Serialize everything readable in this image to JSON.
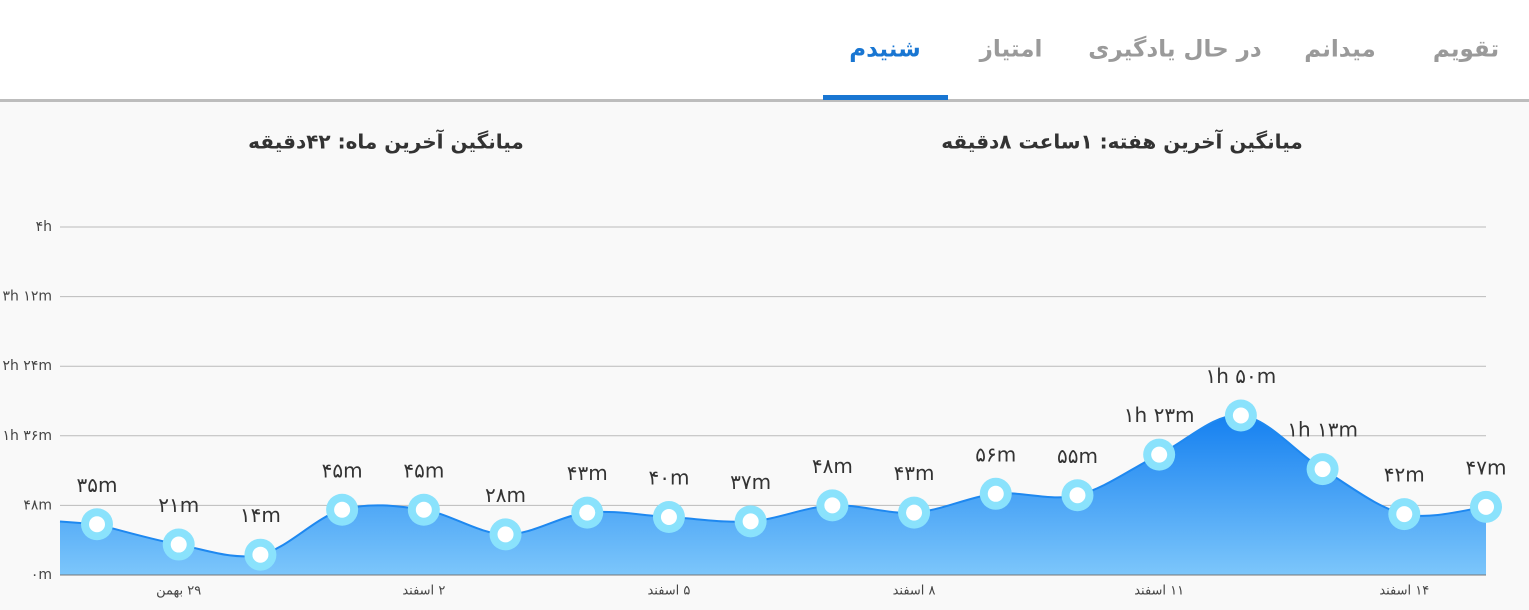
{
  "tabs": [
    "تقویم",
    "میدانم",
    "در حال یادگیری",
    "امتیاز",
    "شنیدم"
  ],
  "active_tab": 4,
  "stats": {
    "week": "میانگین آخرین هفته: ۱ساعت ۸دقیقه",
    "month": "میانگین آخرین ماه: ۴۲دقیقه"
  },
  "chart_data": {
    "type": "area",
    "categories": [
      null,
      "۲۹ بهمن",
      null,
      null,
      "۲ اسفند",
      null,
      null,
      "۵ اسفند",
      null,
      null,
      "۸ اسفند",
      null,
      null,
      "۱۱ اسفند",
      null,
      null,
      "۱۴ اسفند",
      null
    ],
    "series": [
      {
        "color": "#1e88f0",
        "values": [
          35,
          21,
          14,
          45,
          45,
          28,
          43,
          40,
          37,
          48,
          43,
          56,
          55,
          83,
          110,
          73,
          42,
          47
        ],
        "value_labels": [
          "۳۵m",
          "۲۱m",
          "۱۴m",
          "۴۵m",
          "۴۵m",
          "۲۸m",
          "۴۳m",
          "۴۰m",
          "۳۷m",
          "۴۸m",
          "۴۳m",
          "۵۶m",
          "۵۵m",
          "۱h ۲۳m",
          "۱h ۵۰m",
          "۱h ۱۳m",
          "۴۲m",
          "۴۷m"
        ]
      }
    ],
    "ylim": [
      0,
      240
    ],
    "yticks": [
      {
        "value": 0,
        "label": "۰m"
      },
      {
        "value": 48,
        "label": "۴۸m"
      },
      {
        "value": 96,
        "label": "۱h ۳۶m"
      },
      {
        "value": 144,
        "label": "۲h ۲۴m"
      },
      {
        "value": 192,
        "label": "۳h ۱۲m"
      },
      {
        "value": 240,
        "label": "۴h"
      }
    ],
    "grid": true
  }
}
